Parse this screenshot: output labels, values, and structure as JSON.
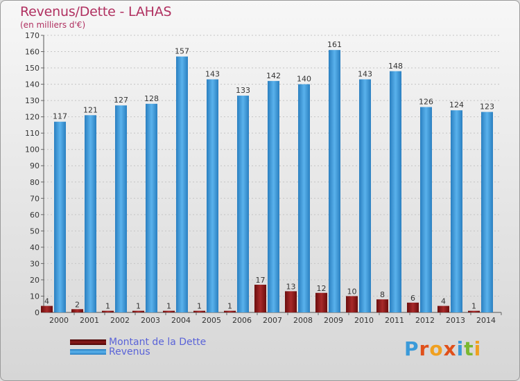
{
  "title": "Revenus/Dette - LAHAS",
  "subtitle": "(en milliers d'€)",
  "colors": {
    "dette": "#8b1a1a",
    "revenus": "#3a99dd",
    "title": "#b03060",
    "legend_text": "#5a63d8"
  },
  "legend": [
    {
      "label": "Montant de la Dette",
      "color": "#6b0d0d"
    },
    {
      "label": "Revenus",
      "color": "#3a99dd"
    }
  ],
  "logo": "Proxiti",
  "chart_data": {
    "type": "bar",
    "title": "Revenus/Dette - LAHAS",
    "subtitle": "(en milliers d'€)",
    "categories": [
      "2000",
      "2001",
      "2002",
      "2003",
      "2004",
      "2005",
      "2006",
      "2007",
      "2008",
      "2009",
      "2010",
      "2011",
      "2012",
      "2013",
      "2014"
    ],
    "series": [
      {
        "name": "Montant de la Dette",
        "values": [
          4,
          2,
          1,
          1,
          1,
          1,
          1,
          17,
          13,
          12,
          10,
          8,
          6,
          4,
          1
        ]
      },
      {
        "name": "Revenus",
        "values": [
          117,
          121,
          127,
          128,
          157,
          143,
          133,
          142,
          140,
          161,
          143,
          148,
          126,
          124,
          123
        ]
      }
    ],
    "ylim": [
      0,
      170
    ],
    "yticks": [
      0,
      10,
      20,
      30,
      40,
      50,
      60,
      70,
      80,
      90,
      100,
      110,
      120,
      130,
      140,
      150,
      160,
      170
    ],
    "grid": true,
    "legend_position": "bottom-left"
  }
}
